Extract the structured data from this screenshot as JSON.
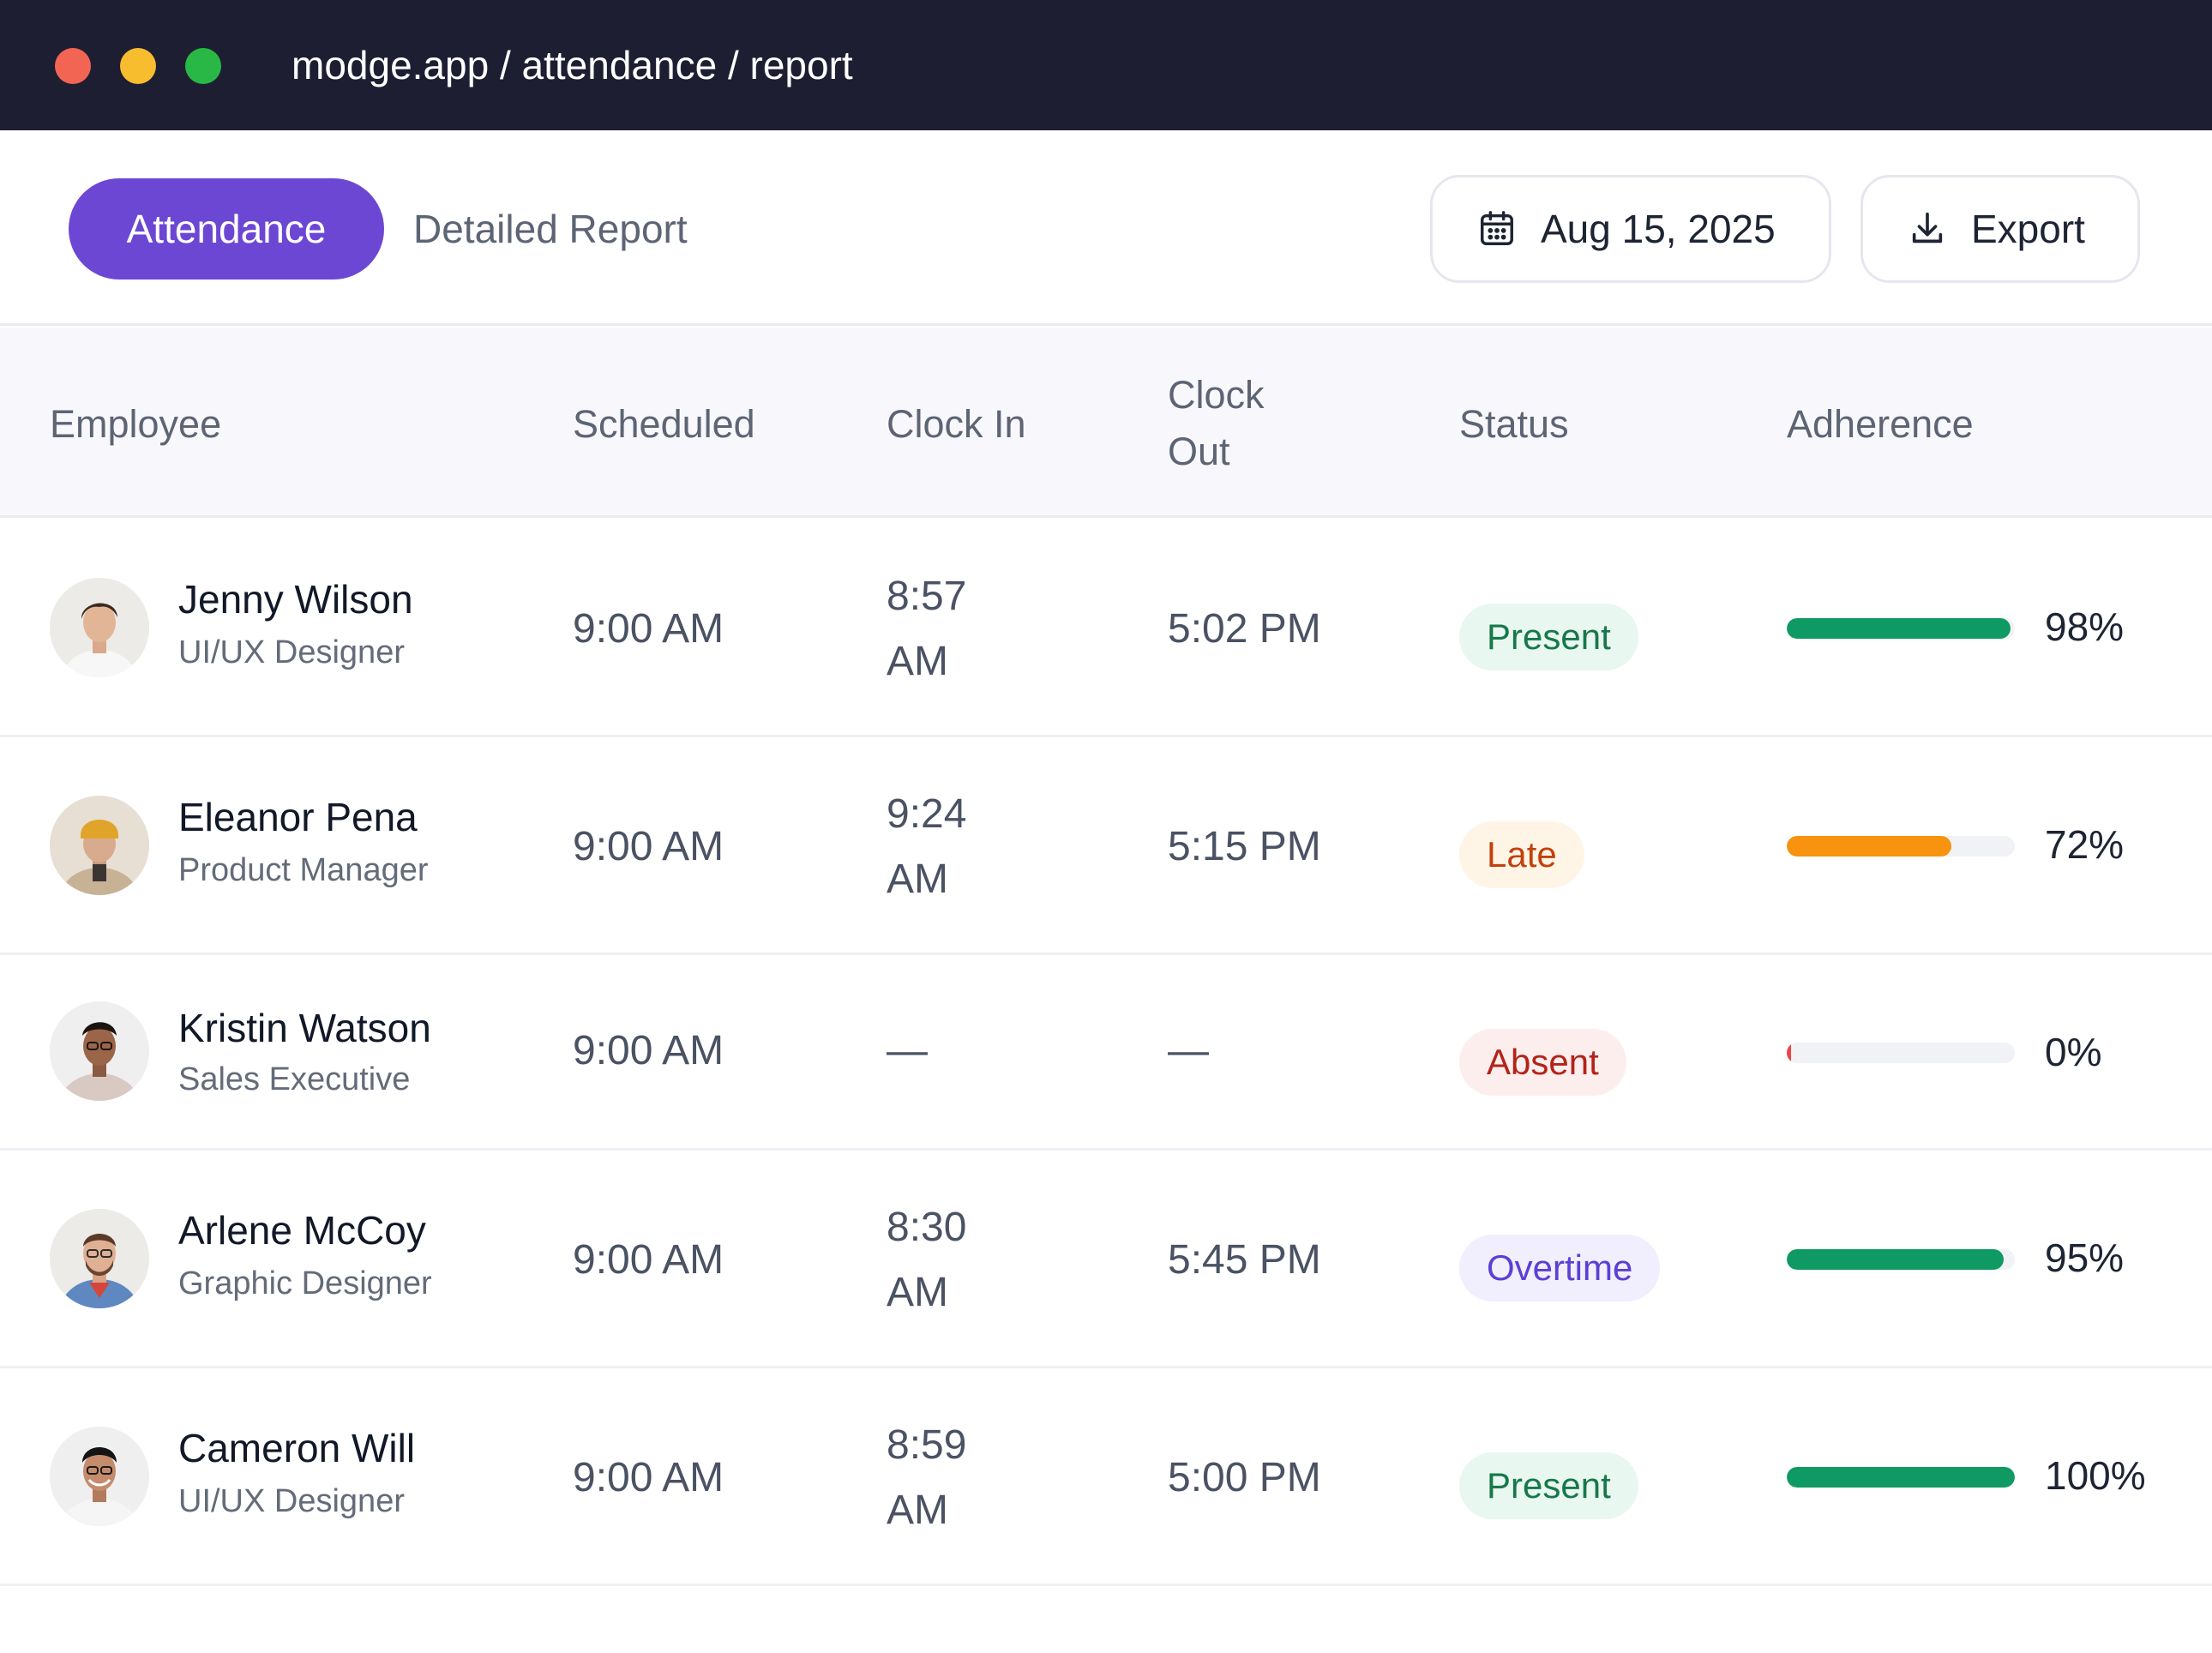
{
  "window": {
    "url": "modge.app / attendance / report"
  },
  "toolbar": {
    "tabs": [
      {
        "label": "Attendance",
        "active": true
      },
      {
        "label": "Detailed Report",
        "active": false
      }
    ],
    "date_label": "Aug 15, 2025",
    "date_icon": "calendar-icon",
    "export_label": "Export",
    "export_icon": "download-icon"
  },
  "table": {
    "columns": [
      "Employee",
      "Scheduled",
      "Clock In",
      "Clock Out",
      "Status",
      "Adherence"
    ],
    "rows": [
      {
        "name": "Jenny Wilson",
        "role": "UI/UX Designer",
        "scheduled": "9:00 AM",
        "clock_in": "8:57 AM",
        "clock_out": "5:02 PM",
        "status": "Present",
        "adherence": "98%",
        "adherence_value": 0.98
      },
      {
        "name": "Eleanor Pena",
        "role": "Product Manager",
        "scheduled": "9:00 AM",
        "clock_in": "9:24 AM",
        "clock_out": "5:15 PM",
        "status": "Late",
        "adherence": "72%",
        "adherence_value": 0.72
      },
      {
        "name": "Kristin Watson",
        "role": "Sales Executive",
        "scheduled": "9:00 AM",
        "clock_in": "—",
        "clock_out": "—",
        "status": "Absent",
        "adherence": "0%",
        "adherence_value": 0
      },
      {
        "name": "Arlene McCoy",
        "role": "Graphic Designer",
        "scheduled": "9:00 AM",
        "clock_in": "8:30 AM",
        "clock_out": "5:45 PM",
        "status": "Overtime",
        "adherence": "95%",
        "adherence_value": 0.95
      },
      {
        "name": "Cameron Will",
        "role": "UI/UX Designer",
        "scheduled": "9:00 AM",
        "clock_in": "8:59 AM",
        "clock_out": "5:00 PM",
        "status": "Present",
        "adherence": "100%",
        "adherence_value": 1.0
      }
    ]
  },
  "colors": {
    "accent": "#6c47d3",
    "titlebar": "#1e1e33",
    "present_fg": "#17784a",
    "present_bg": "#e8f7ef",
    "late_fg": "#c2410c",
    "late_bg": "#fff5e6",
    "absent_fg": "#b42318",
    "absent_bg": "#fdeeee",
    "overtime_fg": "#5b3fd4",
    "overtime_bg": "#f1eefe",
    "bar_green": "#0f9a63",
    "bar_orange": "#f7930f",
    "bar_red": "#ef4444"
  }
}
